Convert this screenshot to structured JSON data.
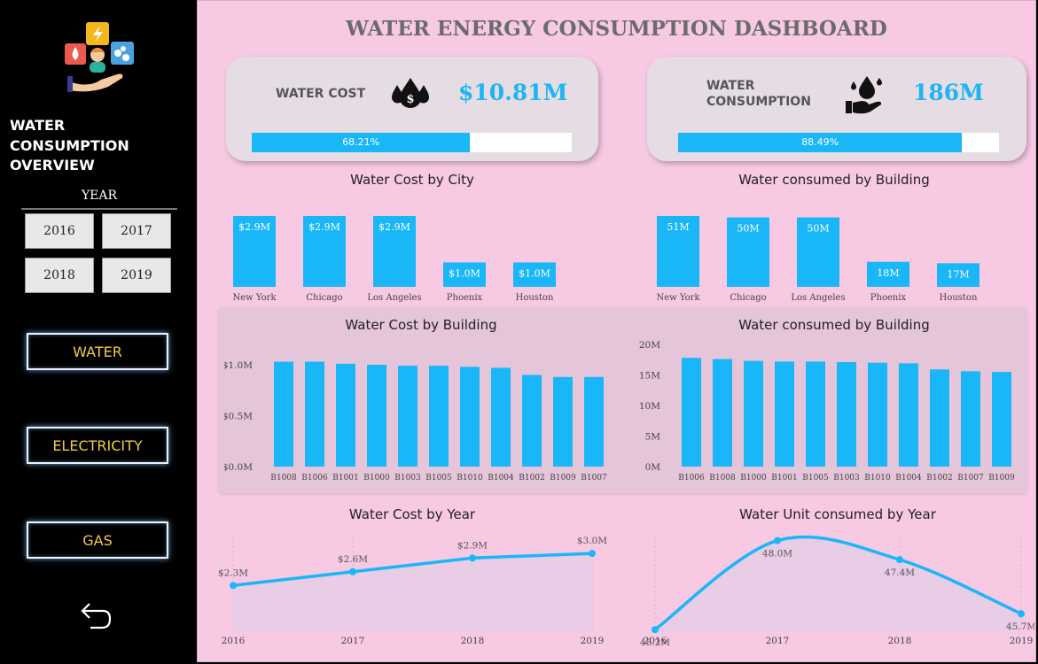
{
  "sidebar": {
    "title": "WATER\nCONSUMPTION\nOVERVIEW",
    "year_label": "YEAR",
    "years": [
      "2016",
      "2017",
      "2018",
      "2019"
    ],
    "nav": [
      "WATER",
      "ELECTRICITY",
      "GAS"
    ],
    "logo_icon": "utilities-hand-icon",
    "back_icon": "undo-arrow-icon"
  },
  "header": {
    "title": "WATER ENERGY CONSUMPTION DASHBOARD"
  },
  "kpis": [
    {
      "label": "WATER COST",
      "icon": "money-drops-icon",
      "value": "$10.81M",
      "progress_label": "68.21%",
      "progress": 0.6821
    },
    {
      "label": "WATER\nCONSUMPTION",
      "icon": "hand-water-drops-icon",
      "value": "186M",
      "progress_label": "88.49%",
      "progress": 0.8849
    }
  ],
  "colors": {
    "accent": "#1ab7f8",
    "page_bg": "#f7c9e3",
    "nav_text": "#f2c94c",
    "area_fill": "#e6cde6"
  },
  "chart_data": [
    {
      "id": "cost-city",
      "type": "bar",
      "title": "Water Cost by City",
      "categories": [
        "New York",
        "Chicago",
        "Los Angeles",
        "Phoenix",
        "Houston"
      ],
      "values": [
        2.9,
        2.9,
        2.9,
        1.0,
        1.0
      ],
      "data_labels": [
        "$2.9M",
        "$2.9M",
        "$2.9M",
        "$1.0M",
        "$1.0M"
      ]
    },
    {
      "id": "consumed-city",
      "type": "bar",
      "title": "Water consumed by Building",
      "categories": [
        "New York",
        "Chicago",
        "Los Angeles",
        "Phoenix",
        "Houston"
      ],
      "values": [
        51,
        50,
        50,
        18,
        17
      ],
      "data_labels": [
        "51M",
        "50M",
        "50M",
        "18M",
        "17M"
      ]
    },
    {
      "id": "cost-building",
      "type": "bar",
      "title": "Water Cost by Building",
      "categories": [
        "B1008",
        "B1006",
        "B1001",
        "B1000",
        "B1003",
        "B1005",
        "B1010",
        "B1004",
        "B1002",
        "B1009",
        "B1007"
      ],
      "values": [
        1.03,
        1.03,
        1.01,
        1.0,
        0.99,
        0.99,
        0.98,
        0.97,
        0.9,
        0.88,
        0.88
      ],
      "ylim": [
        0,
        1.2
      ],
      "yticks": [
        0,
        0.5,
        1.0
      ],
      "ytick_labels": [
        "$0.0M",
        "$0.5M",
        "$1.0M"
      ]
    },
    {
      "id": "consumed-building",
      "type": "bar",
      "title": "Water consumed by Building",
      "categories": [
        "B1006",
        "B1008",
        "B1000",
        "B1001",
        "B1005",
        "B1003",
        "B1010",
        "B1004",
        "B1002",
        "B1007",
        "B1009"
      ],
      "values": [
        17.8,
        17.6,
        17.3,
        17.2,
        17.2,
        17.1,
        17.0,
        16.9,
        15.9,
        15.6,
        15.5
      ],
      "ylim": [
        0,
        20
      ],
      "yticks": [
        0,
        5,
        10,
        15,
        20
      ],
      "ytick_labels": [
        "0M",
        "5M",
        "10M",
        "15M",
        "20M"
      ]
    },
    {
      "id": "cost-year",
      "type": "area",
      "title": "Water Cost by Year",
      "x": [
        "2016",
        "2017",
        "2018",
        "2019"
      ],
      "values": [
        2.3,
        2.6,
        2.9,
        3.0
      ],
      "data_labels": [
        "$2.3M",
        "$2.6M",
        "$2.9M",
        "$3.0M"
      ],
      "ylim": [
        1.3,
        3.35
      ]
    },
    {
      "id": "unit-year",
      "type": "area",
      "title": "Water Unit consumed by Year",
      "x": [
        "2016",
        "2017",
        "2018",
        "2019"
      ],
      "values": [
        45.2,
        48.0,
        47.4,
        45.7
      ],
      "data_labels": [
        "45.2M",
        "48.0M",
        "47.4M",
        "45.7M"
      ],
      "ylim": [
        45.15,
        48.1
      ]
    }
  ]
}
